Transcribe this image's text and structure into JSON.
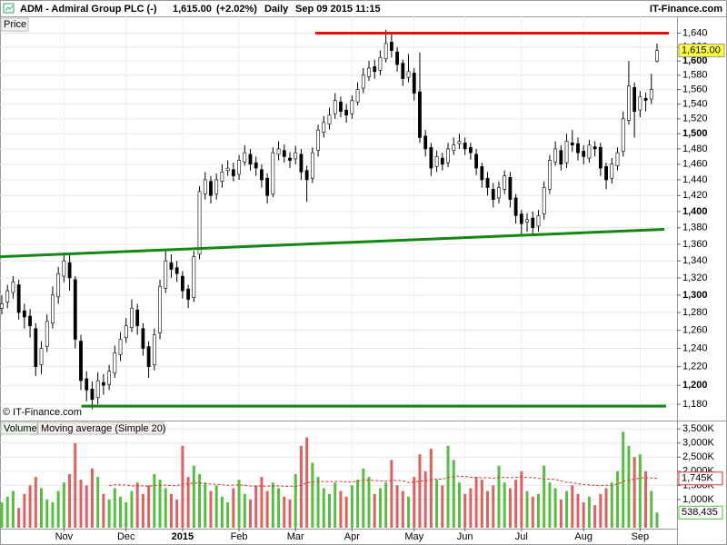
{
  "header": {
    "symbol": "ADM - Admiral Group PLC (-)",
    "change": "(+2.02%)",
    "interval": "Daily",
    "timestamp": "Sep 09 2015 11:15",
    "brand": "IT-Finance.com"
  },
  "chart_data": [
    {
      "type": "candlestick",
      "pane_label": "Price",
      "copyright": "© IT-Finance.com",
      "categories": [
        null,
        null,
        null,
        null,
        null,
        null,
        null,
        null,
        null,
        null,
        null,
        "Nov",
        null,
        null,
        null,
        null,
        null,
        null,
        null,
        null,
        null,
        null,
        "Dec",
        null,
        null,
        null,
        null,
        null,
        null,
        null,
        null,
        null,
        "2015",
        null,
        null,
        null,
        null,
        null,
        null,
        null,
        null,
        null,
        "Feb",
        null,
        null,
        null,
        null,
        null,
        null,
        null,
        null,
        null,
        "Mar",
        null,
        null,
        null,
        null,
        null,
        null,
        null,
        null,
        null,
        "Apr",
        null,
        null,
        null,
        null,
        null,
        null,
        null,
        null,
        null,
        null,
        "May",
        null,
        null,
        null,
        null,
        null,
        null,
        null,
        null,
        "Jun",
        null,
        null,
        null,
        null,
        null,
        null,
        null,
        null,
        null,
        "Jul",
        null,
        null,
        null,
        null,
        null,
        null,
        null,
        null,
        null,
        null,
        "Aug",
        null,
        null,
        null,
        null,
        null,
        null,
        null,
        null,
        null,
        "Sep",
        null,
        null,
        null
      ],
      "open": [
        1285,
        1292,
        1303,
        1312,
        1282,
        1276,
        1262,
        1222,
        1242,
        1268,
        1298,
        1322,
        1338,
        1318,
        1248,
        1207,
        1196,
        1187,
        1203,
        1201,
        1213,
        1233,
        1252,
        1263,
        1283,
        1262,
        1242,
        1222,
        1257,
        1308,
        1338,
        1332,
        1322,
        1307,
        1297,
        1348,
        1422,
        1438,
        1422,
        1438,
        1452,
        1453,
        1447,
        1463,
        1473,
        1462,
        1453,
        1442,
        1422,
        1473,
        1478,
        1468,
        1467,
        1473,
        1452,
        1442,
        1478,
        1502,
        1513,
        1527,
        1543,
        1532,
        1527,
        1543,
        1562,
        1578,
        1592,
        1587,
        1603,
        1627,
        1613,
        1597,
        1577,
        1583,
        1557,
        1497,
        1482,
        1457,
        1468,
        1462,
        1478,
        1487,
        1488,
        1482,
        1473,
        1457,
        1442,
        1428,
        1417,
        1428,
        1443,
        1417,
        1397,
        1387,
        1392,
        1382,
        1397,
        1428,
        1463,
        1478,
        1462,
        1488,
        1487,
        1477,
        1468,
        1483,
        1482,
        1457,
        1442,
        1458,
        1477,
        1518,
        1563,
        1532,
        1548,
        1547,
        1600
      ],
      "high": [
        1300,
        1312,
        1322,
        1318,
        1290,
        1284,
        1268,
        1248,
        1278,
        1310,
        1333,
        1350,
        1348,
        1322,
        1255,
        1215,
        1204,
        1214,
        1212,
        1222,
        1243,
        1258,
        1274,
        1295,
        1290,
        1268,
        1248,
        1262,
        1318,
        1352,
        1348,
        1340,
        1328,
        1312,
        1352,
        1432,
        1450,
        1445,
        1448,
        1460,
        1465,
        1462,
        1472,
        1485,
        1480,
        1470,
        1460,
        1448,
        1482,
        1490,
        1486,
        1476,
        1484,
        1480,
        1458,
        1482,
        1512,
        1524,
        1535,
        1555,
        1550,
        1540,
        1552,
        1570,
        1590,
        1600,
        1602,
        1615,
        1645,
        1638,
        1620,
        1602,
        1610,
        1590,
        1612,
        1505,
        1488,
        1478,
        1475,
        1488,
        1495,
        1500,
        1495,
        1488,
        1480,
        1462,
        1450,
        1436,
        1438,
        1452,
        1450,
        1422,
        1402,
        1398,
        1400,
        1402,
        1438,
        1472,
        1490,
        1485,
        1500,
        1505,
        1495,
        1485,
        1492,
        1490,
        1488,
        1462,
        1468,
        1482,
        1530,
        1600,
        1570,
        1558,
        1556,
        1582,
        1625
      ],
      "low": [
        1278,
        1285,
        1296,
        1272,
        1262,
        1252,
        1210,
        1212,
        1236,
        1262,
        1290,
        1315,
        1305,
        1240,
        1195,
        1183,
        1175,
        1180,
        1190,
        1195,
        1208,
        1226,
        1246,
        1258,
        1255,
        1232,
        1208,
        1216,
        1250,
        1302,
        1320,
        1315,
        1296,
        1285,
        1292,
        1342,
        1415,
        1410,
        1415,
        1430,
        1445,
        1438,
        1440,
        1458,
        1452,
        1445,
        1430,
        1410,
        1418,
        1465,
        1462,
        1455,
        1460,
        1440,
        1412,
        1436,
        1470,
        1495,
        1506,
        1520,
        1522,
        1515,
        1520,
        1538,
        1555,
        1572,
        1575,
        1580,
        1598,
        1605,
        1585,
        1565,
        1570,
        1545,
        1488,
        1470,
        1445,
        1450,
        1452,
        1456,
        1472,
        1480,
        1472,
        1466,
        1446,
        1430,
        1420,
        1405,
        1410,
        1422,
        1405,
        1385,
        1372,
        1375,
        1372,
        1375,
        1390,
        1422,
        1458,
        1452,
        1455,
        1476,
        1465,
        1460,
        1462,
        1470,
        1445,
        1428,
        1435,
        1452,
        1470,
        1512,
        1495,
        1522,
        1530,
        1540,
        1598
      ],
      "close": [
        1290,
        1305,
        1315,
        1280,
        1275,
        1265,
        1220,
        1240,
        1270,
        1300,
        1325,
        1340,
        1320,
        1250,
        1205,
        1195,
        1185,
        1205,
        1200,
        1215,
        1235,
        1250,
        1265,
        1285,
        1265,
        1240,
        1220,
        1255,
        1310,
        1340,
        1330,
        1325,
        1305,
        1295,
        1345,
        1425,
        1440,
        1420,
        1440,
        1450,
        1455,
        1445,
        1465,
        1475,
        1460,
        1455,
        1440,
        1420,
        1475,
        1480,
        1470,
        1465,
        1475,
        1450,
        1440,
        1475,
        1505,
        1515,
        1525,
        1545,
        1530,
        1525,
        1545,
        1560,
        1580,
        1590,
        1585,
        1605,
        1625,
        1615,
        1595,
        1575,
        1585,
        1555,
        1495,
        1480,
        1455,
        1470,
        1460,
        1480,
        1485,
        1490,
        1480,
        1475,
        1455,
        1440,
        1430,
        1415,
        1430,
        1445,
        1415,
        1395,
        1385,
        1390,
        1380,
        1395,
        1430,
        1465,
        1480,
        1460,
        1490,
        1485,
        1475,
        1470,
        1485,
        1480,
        1455,
        1440,
        1460,
        1475,
        1520,
        1565,
        1530,
        1550,
        1545,
        1560,
        1615
      ],
      "up_color": "#ffffff",
      "down_color": "#000000",
      "ylim": [
        1164,
        1662
      ],
      "log_scale": true,
      "grid": true,
      "yticks": [
        {
          "value": 1180,
          "label": "1,180"
        },
        {
          "value": 1200,
          "label": "1,200"
        },
        {
          "value": 1220,
          "label": "1,220"
        },
        {
          "value": 1240,
          "label": "1,240"
        },
        {
          "value": 1260,
          "label": "1,260"
        },
        {
          "value": 1280,
          "label": "1,280"
        },
        {
          "value": 1300,
          "label": "1,300"
        },
        {
          "value": 1320,
          "label": "1,320"
        },
        {
          "value": 1340,
          "label": "1,340"
        },
        {
          "value": 1360,
          "label": "1,360"
        },
        {
          "value": 1380,
          "label": "1,380"
        },
        {
          "value": 1400,
          "label": "1,400"
        },
        {
          "value": 1420,
          "label": "1,420"
        },
        {
          "value": 1440,
          "label": "1,440"
        },
        {
          "value": 1460,
          "label": "1,460"
        },
        {
          "value": 1480,
          "label": "1,480"
        },
        {
          "value": 1500,
          "label": "1,500"
        },
        {
          "value": 1520,
          "label": "1,520"
        },
        {
          "value": 1540,
          "label": "1,540"
        },
        {
          "value": 1560,
          "label": "1,560"
        },
        {
          "value": 1580,
          "label": "1,580"
        },
        {
          "value": 1600,
          "label": "1,600"
        },
        {
          "value": 1620,
          "label": "1,620"
        },
        {
          "value": 1640,
          "label": "1,640"
        }
      ],
      "last_price": {
        "value": 1615,
        "label": "1,615.00"
      },
      "last_price_color": "#ffff33",
      "trendlines": [
        {
          "color": "#e01010",
          "from": [
            55.5,
            1640
          ],
          "to": [
            118.1,
            1640
          ]
        },
        {
          "color": "#118811",
          "from": [
            -0.3,
            1345
          ],
          "to": [
            117.3,
            1378
          ]
        },
        {
          "color": "#118811",
          "from": [
            14.1,
            1178
          ],
          "to": [
            117.6,
            1178
          ]
        }
      ]
    },
    {
      "type": "bar",
      "ylim": [
        0,
        3700
      ],
      "grid": true,
      "down_color": "#e06060",
      "yticks": [
        {
          "value": 1000,
          "label": "1,000K"
        },
        {
          "value": 1500,
          "label": "1,500K"
        },
        {
          "value": 2000,
          "label": "2,000K"
        },
        {
          "value": 2500,
          "label": "2,500K"
        },
        {
          "value": 3000,
          "label": "3,000K"
        },
        {
          "value": 3500,
          "label": "3,500K"
        }
      ],
      "series": [
        {
          "name": "Volume",
          "color": "#55c040",
          "last_label": "538,435",
          "values": [
            900,
            1100,
            1300,
            700,
            1200,
            1500,
            1800,
            1400,
            1000,
            900,
            1300,
            1600,
            1900,
            3000,
            1700,
            1500,
            2100,
            1800,
            1200,
            1000,
            1400,
            1100,
            900,
            1300,
            1600,
            1200,
            1500,
            1900,
            1700,
            1400,
            1200,
            1000,
            2900,
            1800,
            2200,
            1900,
            1600,
            1300,
            1500,
            1100,
            900,
            1400,
            1700,
            1200,
            1000,
            1500,
            1800,
            1300,
            1600,
            1400,
            1100,
            1000,
            1900,
            2900,
            3200,
            2300,
            1800,
            1400,
            1200,
            1600,
            1300,
            1100,
            1500,
            1700,
            2100,
            1800,
            1200,
            1400,
            1600,
            2400,
            1500,
            1300,
            1100,
            1800,
            2600,
            2000,
            2800,
            1700,
            1500,
            2900,
            2400,
            1600,
            1200,
            1400,
            1800,
            1700,
            1300,
            1500,
            2200,
            1600,
            1400,
            1700,
            2000,
            1300,
            1100,
            1200,
            2200,
            1600,
            1400,
            1000,
            1300,
            1500,
            1200,
            900,
            1100,
            800,
            1200,
            1400,
            1600,
            2000,
            3400,
            2900,
            2500,
            2600,
            2000,
            1300,
            538.435
          ]
        },
        {
          "name": "Moving average (Simple 20)",
          "color": "#dd3333",
          "last_label": "1,745K",
          "values": [
            null,
            null,
            null,
            null,
            null,
            null,
            null,
            null,
            null,
            null,
            null,
            null,
            null,
            null,
            null,
            null,
            null,
            null,
            null,
            1500,
            1520,
            1520,
            1510,
            1480,
            1490,
            1480,
            1470,
            1490,
            1500,
            1510,
            1500,
            1490,
            1550,
            1560,
            1580,
            1590,
            1570,
            1550,
            1540,
            1520,
            1500,
            1510,
            1520,
            1500,
            1480,
            1470,
            1480,
            1470,
            1480,
            1480,
            1470,
            1460,
            1460,
            1510,
            1600,
            1620,
            1640,
            1640,
            1630,
            1640,
            1640,
            1630,
            1620,
            1650,
            1680,
            1690,
            1670,
            1660,
            1650,
            1670,
            1680,
            1660,
            1600,
            1620,
            1650,
            1660,
            1700,
            1720,
            1720,
            1780,
            1820,
            1830,
            1810,
            1790,
            1780,
            1770,
            1770,
            1750,
            1780,
            1780,
            1770,
            1780,
            1800,
            1780,
            1770,
            1750,
            1730,
            1720,
            1710,
            1660,
            1610,
            1600,
            1560,
            1530,
            1520,
            1500,
            1500,
            1500,
            1510,
            1540,
            1640,
            1690,
            1720,
            1760,
            1770,
            1760,
            1745
          ]
        }
      ]
    }
  ]
}
